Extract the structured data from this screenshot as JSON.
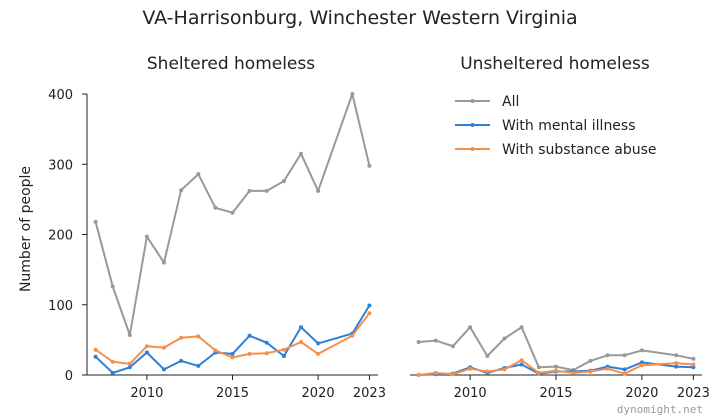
{
  "figure": {
    "title": "VA-Harrisonburg, Winchester Western Virginia",
    "credit": "dynomight.net"
  },
  "legend": {
    "items": [
      {
        "label": "All",
        "color": "#999999"
      },
      {
        "label": "With mental illness",
        "color": "#2f7fd6"
      },
      {
        "label": "With substance abuse",
        "color": "#f5904a"
      }
    ]
  },
  "chart_data": [
    {
      "type": "line",
      "title": "Sheltered homeless",
      "ylabel": "Number of people",
      "xlim": [
        2006.5,
        2023.5
      ],
      "ylim": [
        0,
        400
      ],
      "xticks": [
        2010,
        2015,
        2020,
        2023
      ],
      "yticks": [
        0,
        100,
        200,
        300,
        400
      ],
      "series": [
        {
          "name": "All",
          "color": "#999999",
          "x": [
            2007,
            2008,
            2009,
            2010,
            2011,
            2012,
            2013,
            2014,
            2015,
            2016,
            2017,
            2018,
            2019,
            2020,
            2022,
            2023
          ],
          "y": [
            218,
            126,
            57,
            197,
            160,
            263,
            286,
            238,
            231,
            262,
            262,
            276,
            315,
            262,
            400,
            298
          ]
        },
        {
          "name": "With mental illness",
          "color": "#2f7fd6",
          "x": [
            2007,
            2008,
            2009,
            2010,
            2011,
            2012,
            2013,
            2014,
            2015,
            2016,
            2017,
            2018,
            2019,
            2020,
            2022,
            2023
          ],
          "y": [
            26,
            3,
            11,
            32,
            8,
            20,
            13,
            32,
            30,
            56,
            46,
            27,
            68,
            45,
            59,
            99
          ]
        },
        {
          "name": "With substance abuse",
          "color": "#f5904a",
          "x": [
            2007,
            2008,
            2009,
            2010,
            2011,
            2012,
            2013,
            2014,
            2015,
            2016,
            2017,
            2018,
            2019,
            2020,
            2022,
            2023
          ],
          "y": [
            36,
            19,
            16,
            41,
            39,
            53,
            55,
            35,
            25,
            30,
            31,
            36,
            47,
            30,
            56,
            88
          ]
        }
      ]
    },
    {
      "type": "line",
      "title": "Unsheltered homeless",
      "xlim": [
        2006.5,
        2023.5
      ],
      "ylim": [
        0,
        400
      ],
      "xticks": [
        2010,
        2015,
        2020,
        2023
      ],
      "series": [
        {
          "name": "All",
          "color": "#999999",
          "x": [
            2007,
            2008,
            2009,
            2010,
            2011,
            2012,
            2013,
            2014,
            2015,
            2016,
            2017,
            2018,
            2019,
            2020,
            2022,
            2023
          ],
          "y": [
            47,
            49,
            41,
            68,
            27,
            52,
            68,
            11,
            12,
            7,
            20,
            28,
            28,
            35,
            28,
            23
          ]
        },
        {
          "name": "With mental illness",
          "color": "#2f7fd6",
          "x": [
            2007,
            2008,
            2009,
            2010,
            2011,
            2012,
            2013,
            2014,
            2015,
            2016,
            2017,
            2018,
            2019,
            2020,
            2022,
            2023
          ],
          "y": [
            0,
            1,
            2,
            11,
            3,
            10,
            15,
            2,
            5,
            5,
            6,
            12,
            8,
            18,
            12,
            11
          ]
        },
        {
          "name": "With substance abuse",
          "color": "#f5904a",
          "x": [
            2007,
            2008,
            2009,
            2010,
            2011,
            2012,
            2013,
            2014,
            2015,
            2016,
            2017,
            2018,
            2019,
            2020,
            2022,
            2023
          ],
          "y": [
            0,
            3,
            1,
            9,
            5,
            8,
            21,
            3,
            6,
            3,
            5,
            9,
            2,
            14,
            17,
            15
          ]
        }
      ]
    }
  ]
}
